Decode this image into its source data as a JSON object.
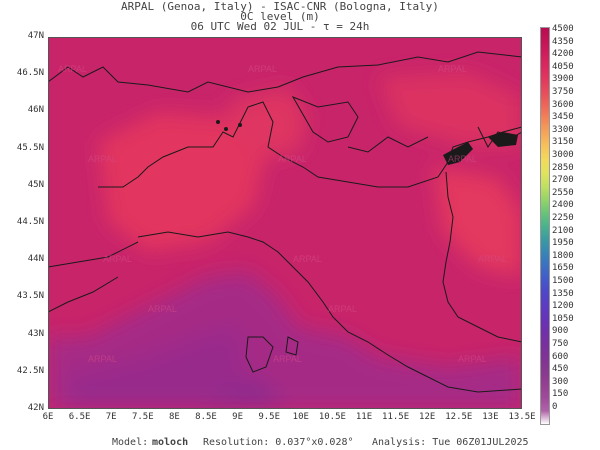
{
  "header": {
    "line1": "ARPAL (Genoa, Italy)  -  ISAC-CNR (Bologna, Italy)",
    "line2": "0C level (m)",
    "line3": "06 UTC Wed 02 JUL  -  τ = 24h"
  },
  "map": {
    "y_ticks": [
      "47N",
      "46.5N",
      "46N",
      "45.5N",
      "45N",
      "44.5N",
      "44N",
      "43.5N",
      "43N",
      "42.5N",
      "42N"
    ],
    "x_ticks": [
      "6E",
      "6.5E",
      "7E",
      "7.5E",
      "8E",
      "8.5E",
      "9E",
      "9.5E",
      "10E",
      "10.5E",
      "11E",
      "11.5E",
      "12E",
      "12.5E",
      "13E",
      "13.5E"
    ],
    "watermark": "ARPAL",
    "colors": {
      "dominant": "#c8246a",
      "warm": "#e2365f",
      "cool": "#a62985",
      "coastline": "#1a1a1a"
    }
  },
  "colorbar": {
    "labels": [
      "4500",
      "4350",
      "4200",
      "4050",
      "3900",
      "3750",
      "3600",
      "3450",
      "3300",
      "3150",
      "3000",
      "2850",
      "2700",
      "2550",
      "2400",
      "2250",
      "2100",
      "1950",
      "1800",
      "1650",
      "1500",
      "1350",
      "1200",
      "1050",
      "900",
      "750",
      "600",
      "450",
      "300",
      "150",
      "0"
    ],
    "colors": [
      "#b80b52",
      "#c41457",
      "#d01e5c",
      "#dc2a60",
      "#e23a5e",
      "#e8505b",
      "#ee6a5a",
      "#f28858",
      "#f5a65a",
      "#f7c35c",
      "#f3d95c",
      "#e0e35e",
      "#bfe060",
      "#94d468",
      "#6ac478",
      "#4ab28c",
      "#3a9ca2",
      "#3886b5",
      "#3b70c2",
      "#435ac9",
      "#4f47c8",
      "#5c3cc2",
      "#6634b8",
      "#7030ab",
      "#78309f",
      "#803396",
      "#88388f",
      "#943f92",
      "#a04a9a",
      "#b063a8",
      "#ffffff"
    ]
  },
  "footer": {
    "model_label": "Model:",
    "model_value": "moloch",
    "resolution": "Resolution: 0.037°x0.028°",
    "analysis": "Analysis: Tue 06Z01JUL2025"
  }
}
